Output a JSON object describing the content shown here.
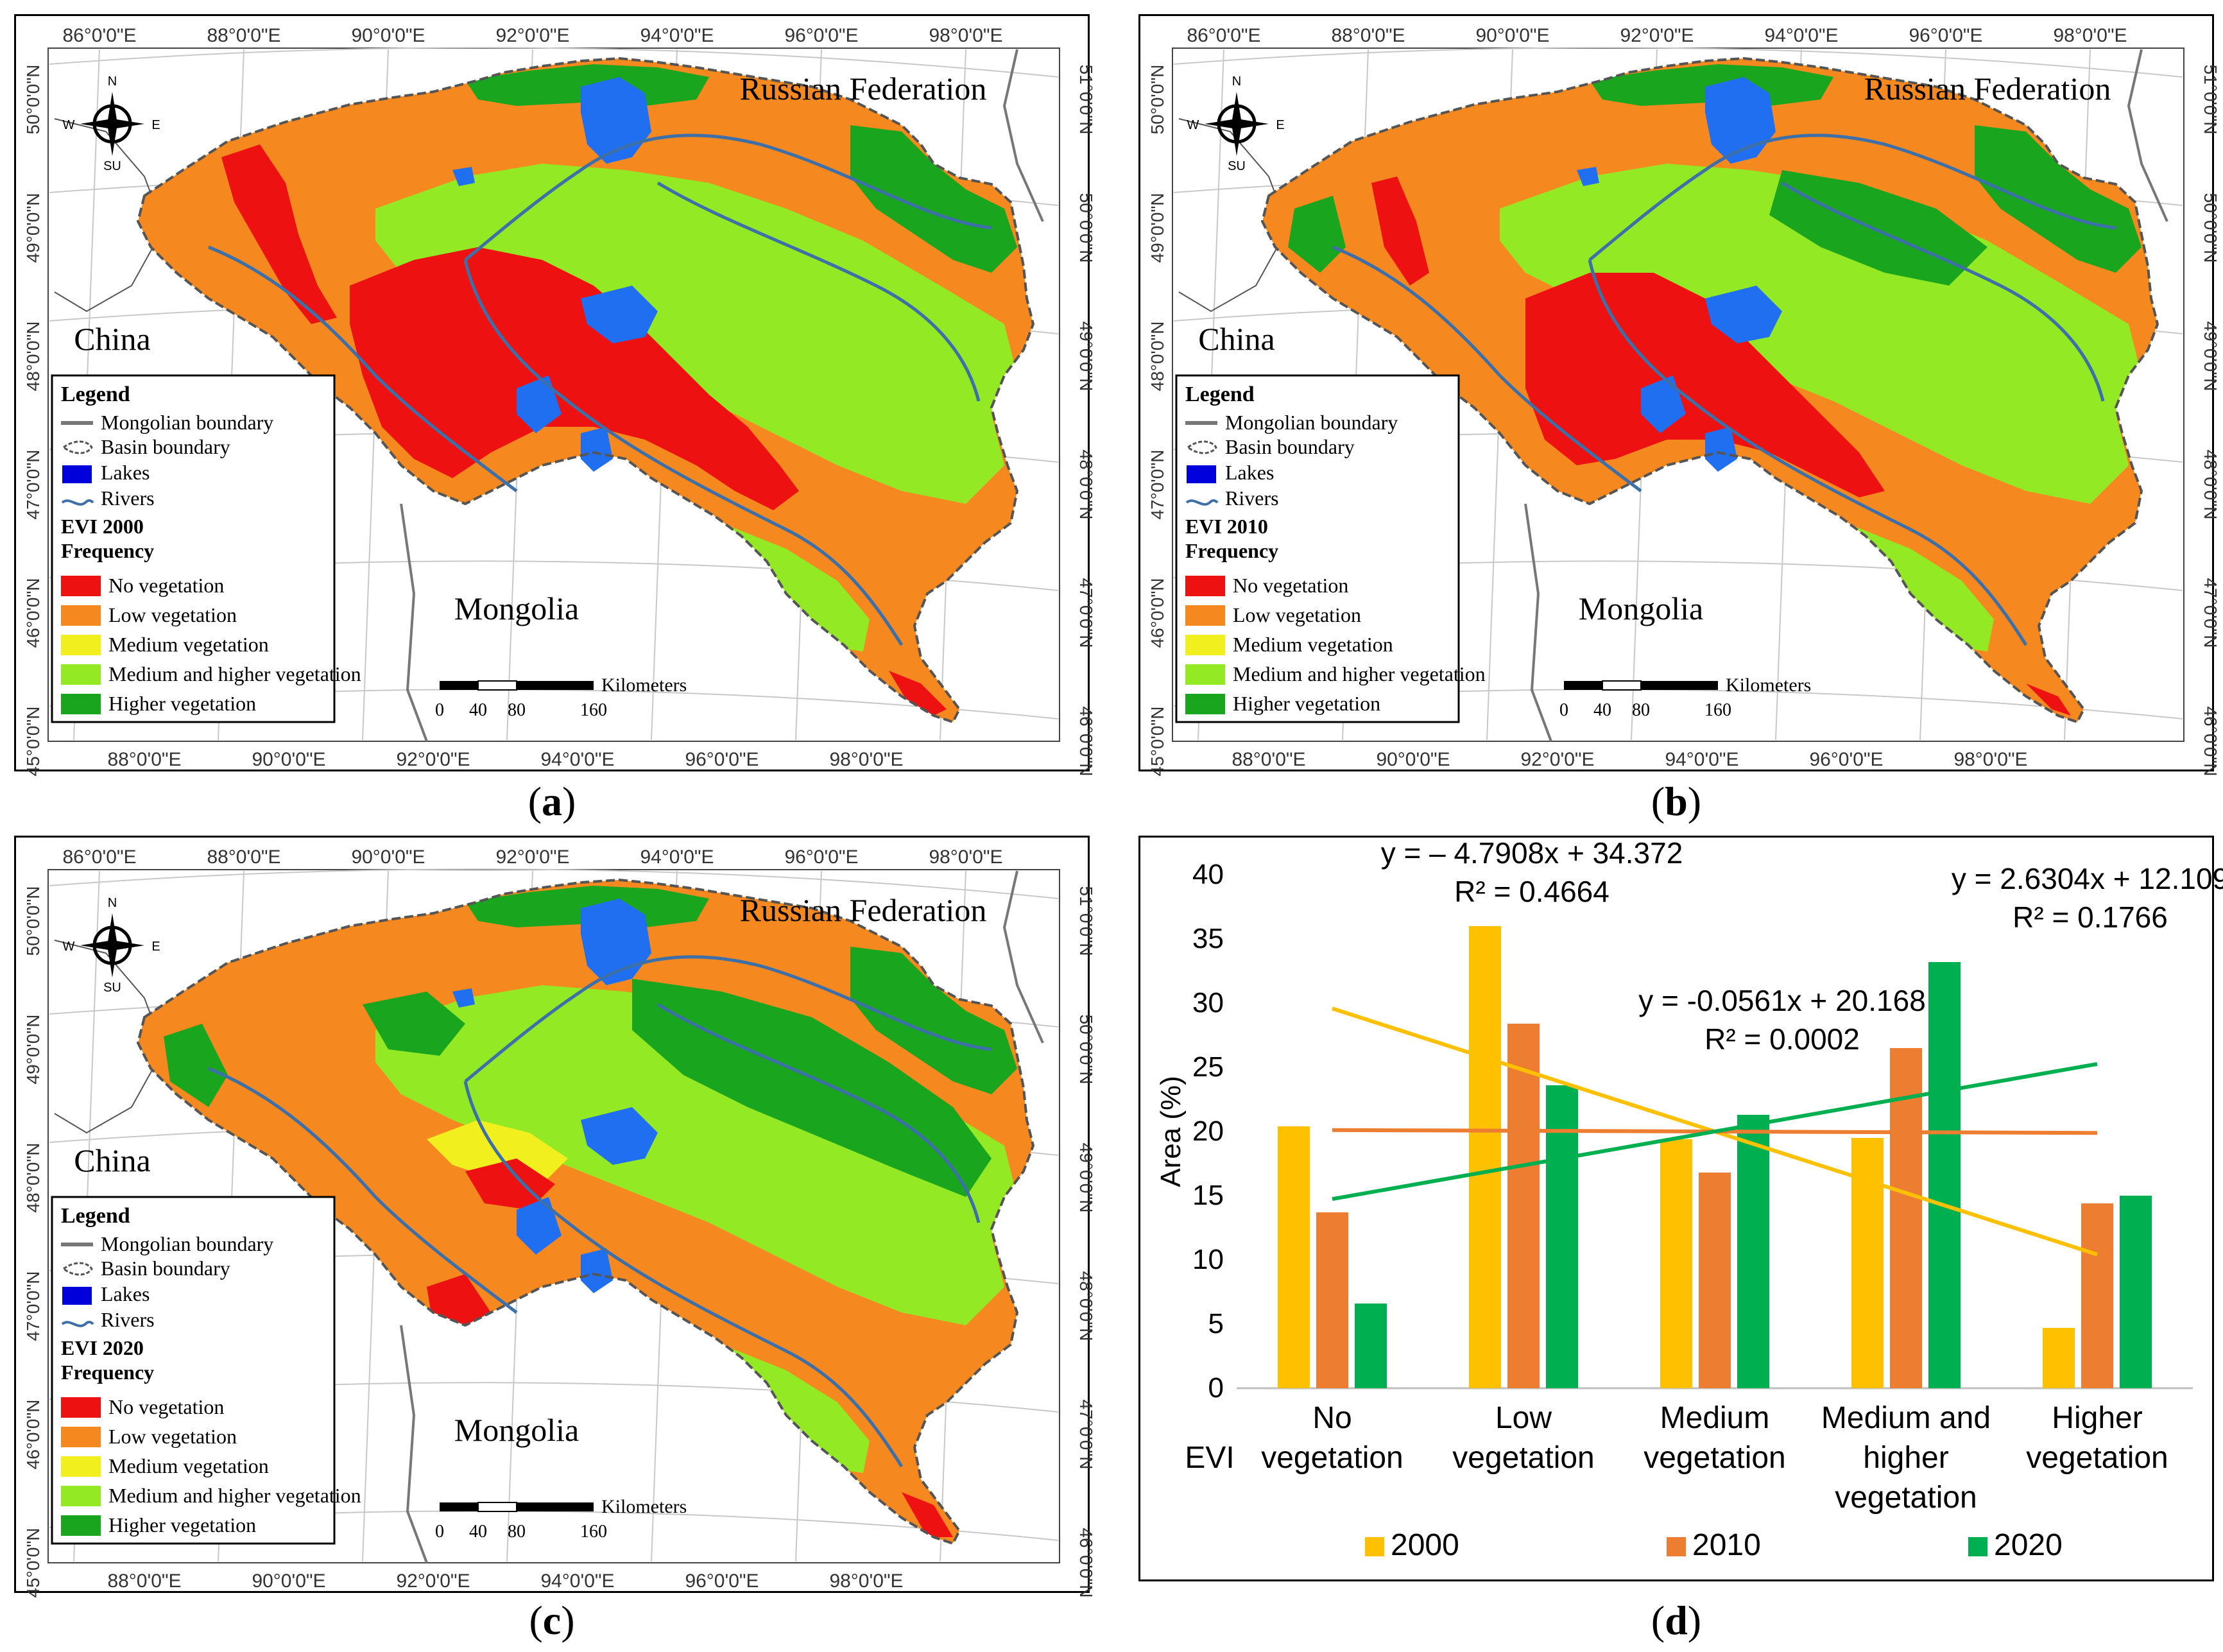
{
  "maps": [
    {
      "id": "a",
      "panel_label": "a",
      "evi_title": "EVI 2000",
      "palette": "2000",
      "top_ticks": [
        "86°0'0\"E",
        "88°0'0\"E",
        "90°0'0\"E",
        "92°0'0\"E",
        "94°0'0\"E",
        "96°0'0\"E",
        "98°0'0\"E"
      ],
      "bottom_ticks": [
        "88°0'0\"E",
        "90°0'0\"E",
        "92°0'0\"E",
        "94°0'0\"E",
        "96°0'0\"E",
        "98°0'0\"E"
      ],
      "left_ticks": [
        "50°0'0\"N",
        "49°0'0\"N",
        "48°0'0\"N",
        "47°0'0\"N",
        "46°0'0\"N",
        "45°0'0\"N"
      ],
      "right_ticks": [
        "51°0'0\"N",
        "50°0'0\"N",
        "49°0'0\"N",
        "48°0'0\"N",
        "47°0'0\"N",
        "46°0'0\"N"
      ]
    },
    {
      "id": "b",
      "panel_label": "b",
      "evi_title": "EVI 2010",
      "palette": "2010",
      "top_ticks": [
        "86°0'0\"E",
        "88°0'0\"E",
        "90°0'0\"E",
        "92°0'0\"E",
        "94°0'0\"E",
        "96°0'0\"E",
        "98°0'0\"E"
      ],
      "bottom_ticks": [
        "88°0'0\"E",
        "90°0'0\"E",
        "92°0'0\"E",
        "94°0'0\"E",
        "96°0'0\"E",
        "98°0'0\"E"
      ],
      "left_ticks": [
        "50°0'0\"N",
        "49°0'0\"N",
        "48°0'0\"N",
        "47°0'0\"N",
        "46°0'0\"N",
        "45°0'0\"N"
      ],
      "right_ticks": [
        "51°0'0\"N",
        "50°0'0\"N",
        "49°0'0\"N",
        "48°0'0\"N",
        "47°0'0\"N",
        "46°0'0\"N"
      ]
    },
    {
      "id": "c",
      "panel_label": "c",
      "evi_title": "EVI 2020",
      "palette": "2020",
      "top_ticks": [
        "86°0'0\"E",
        "88°0'0\"E",
        "90°0'0\"E",
        "92°0'0\"E",
        "94°0'0\"E",
        "96°0'0\"E",
        "98°0'0\"E"
      ],
      "bottom_ticks": [
        "88°0'0\"E",
        "90°0'0\"E",
        "92°0'0\"E",
        "94°0'0\"E",
        "96°0'0\"E",
        "98°0'0\"E"
      ],
      "left_ticks": [
        "50°0'0\"N",
        "49°0'0\"N",
        "48°0'0\"N",
        "47°0'0\"N",
        "46°0'0\"N",
        "45°0'0\"N"
      ],
      "right_ticks": [
        "51°0'0\"N",
        "50°0'0\"N",
        "49°0'0\"N",
        "48°0'0\"N",
        "47°0'0\"N",
        "46°0'0\"N"
      ]
    }
  ],
  "map_common": {
    "country_russia": "Russian Federation",
    "country_china": "China",
    "country_mongolia": "Mongolia",
    "compass": {
      "n": "N",
      "s": "SU",
      "e": "E",
      "w": "W"
    },
    "legend_title": "Legend",
    "legend_lines": [
      "Mongolian boundary",
      "Basin boundary",
      "Lakes",
      "Rivers"
    ],
    "frequency_label": "Frequency",
    "classes": [
      "No vegetation",
      "Low vegetation",
      "Medium vegetation",
      "Medium and higher vegetation",
      "Higher vegetation"
    ],
    "scale_unit": "Kilometers",
    "scale_ticks": [
      "0",
      "40",
      "80",
      "160"
    ]
  },
  "colors": {
    "no_veg": "#ee1111",
    "low_veg": "#f5891f",
    "medium_veg": "#f2ef1e",
    "med_high_veg": "#93ea24",
    "high_veg": "#1aa51e",
    "lake": "#1f6ff0",
    "river": "#3d6fa8",
    "bar_2000": "#ffc000",
    "bar_2010": "#ed7d31",
    "bar_2020": "#00b050"
  },
  "chart_panel_label": "d",
  "chart_data": {
    "type": "bar",
    "ylabel": "Area (%)",
    "xlabel": "EVI",
    "ylim": [
      0,
      40
    ],
    "yticks": [
      "0",
      "5",
      "10",
      "15",
      "20",
      "25",
      "30",
      "35",
      "40"
    ],
    "categories": [
      "No vegetation",
      "Low vegetation",
      "Medium vegetation",
      "Medium and higher vegetation",
      "Higher vegetation"
    ],
    "category_lines": [
      [
        "No",
        "vegetation"
      ],
      [
        "Low",
        "vegetation"
      ],
      [
        "Medium",
        "vegetation"
      ],
      [
        "Medium and",
        "higher",
        "vegetation"
      ],
      [
        "Higher",
        "vegetation"
      ]
    ],
    "series": [
      {
        "name": "2000",
        "values": [
          20.4,
          36.0,
          19.4,
          19.5,
          4.7
        ]
      },
      {
        "name": "2010",
        "values": [
          13.7,
          28.4,
          16.8,
          26.5,
          14.4
        ]
      },
      {
        "name": "2020",
        "values": [
          6.6,
          23.6,
          21.3,
          33.2,
          15.0
        ]
      }
    ],
    "trendlines": [
      {
        "series": "2000",
        "slope": -4.7908,
        "intercept": 34.372,
        "equation": "y = – 4.7908x + 34.372",
        "r2": "R² = 0.4664"
      },
      {
        "series": "2010",
        "slope": -0.0561,
        "intercept": 20.168,
        "equation": "y = -0.0561x + 20.168",
        "r2": "R² = 0.0002"
      },
      {
        "series": "2020",
        "slope": 2.6304,
        "intercept": 12.109,
        "equation": "y = 2.6304x + 12.109",
        "r2": "R² = 0.1766"
      }
    ],
    "legend_position": "bottom",
    "grid": false
  }
}
